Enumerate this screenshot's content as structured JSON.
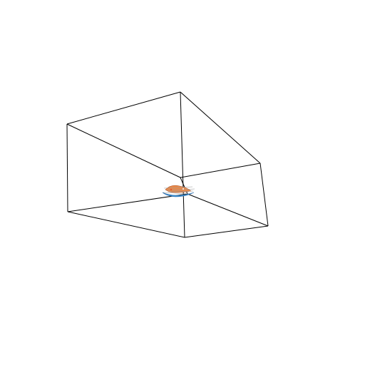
{
  "scene": {
    "background_color": "#ffffff",
    "bounding_box": {
      "kind": "wireframe-box",
      "edge_color": "#000000",
      "edge_count": 12
    },
    "object": {
      "kind": "small-3d-model",
      "colors": [
        "#f08a3c",
        "#3a8fd0",
        "#2f6fae",
        "#c9c9c9",
        "#e85a2a"
      ]
    }
  }
}
